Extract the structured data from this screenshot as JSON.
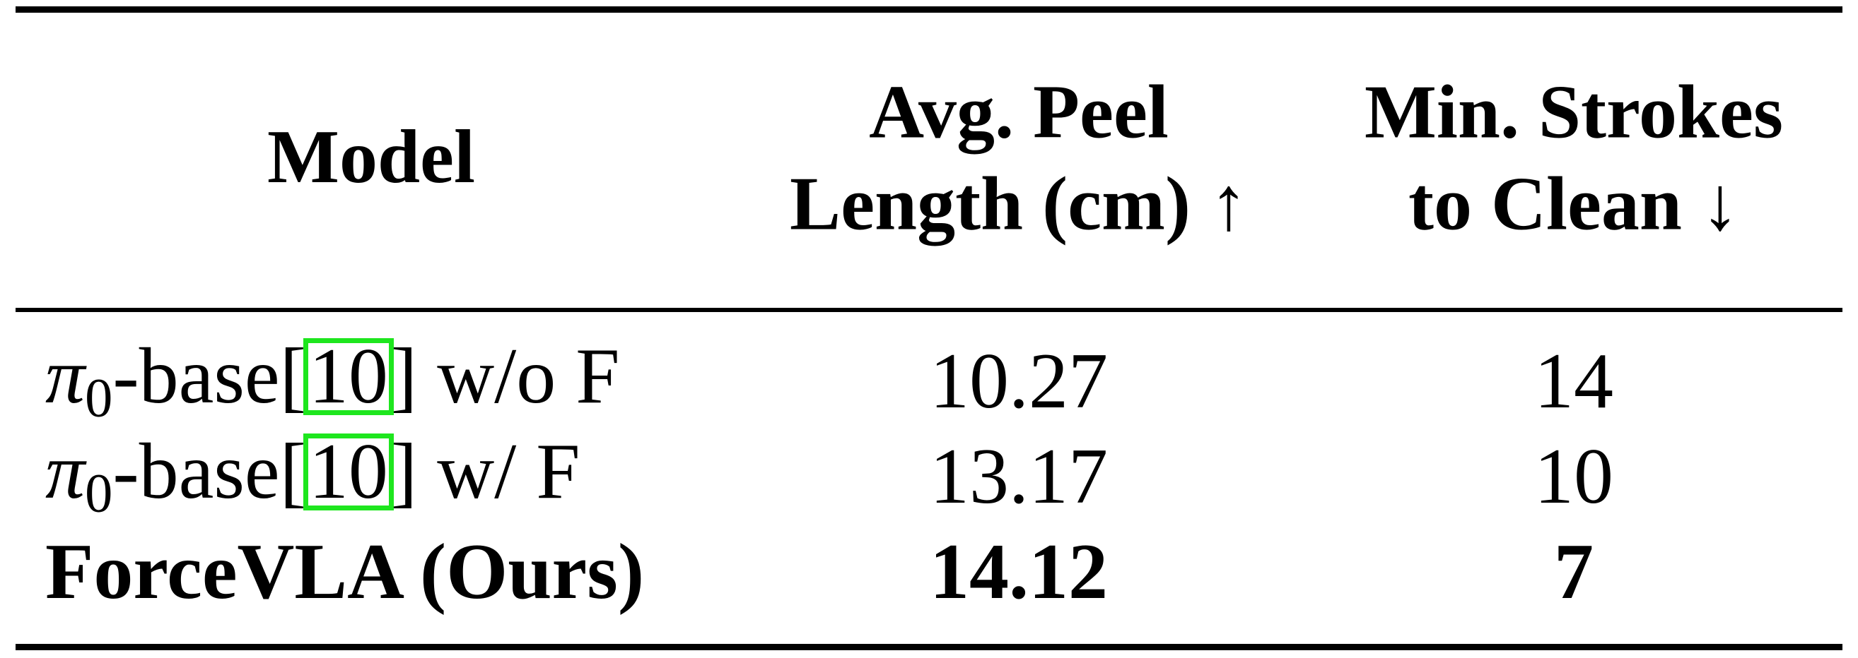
{
  "table": {
    "header": [
      [
        "Model"
      ],
      [
        "Avg. Peel",
        "Length (cm) ↑"
      ],
      [
        "Min. Strokes",
        "to Clean ↓"
      ]
    ],
    "rows": [
      {
        "model": {
          "symbol": "π",
          "subscript": "0",
          "name": "-base[",
          "citation": "10",
          "suffix": "] w/o F"
        },
        "cells": [
          "10.27",
          "14"
        ]
      },
      {
        "model": {
          "symbol": "π",
          "subscript": "0",
          "name": "-base[",
          "citation": "10",
          "suffix": "] w/ F"
        },
        "cells": [
          "13.17",
          "10"
        ]
      },
      {
        "model": {
          "name": "ForceVLA (Ours)"
        },
        "cells": [
          "14.12",
          "7"
        ],
        "bold": true
      }
    ]
  }
}
